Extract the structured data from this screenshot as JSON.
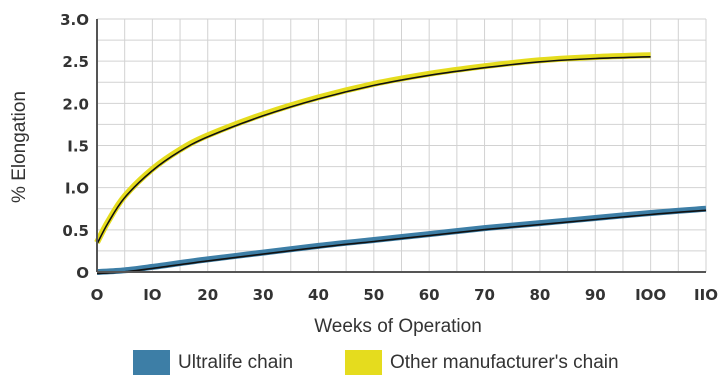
{
  "chart_data": {
    "type": "line",
    "xlabel": "Weeks of Operation",
    "ylabel": "% Elongation",
    "x_ticks": [
      "O",
      "IO",
      "20",
      "30",
      "40",
      "50",
      "60",
      "70",
      "80",
      "90",
      "IOO",
      "IIO"
    ],
    "y_ticks": [
      "O",
      "0.5",
      "I.O",
      "I.5",
      "2.0",
      "2.5",
      "3.O"
    ],
    "xlim": [
      0,
      110
    ],
    "ylim": [
      0,
      3.0
    ],
    "grid": true,
    "legend_position": "bottom",
    "series": [
      {
        "name": "Ultralife chain",
        "color": "#3d7ea6",
        "x": [
          0,
          5,
          10,
          20,
          30,
          40,
          50,
          60,
          70,
          80,
          90,
          100,
          110
        ],
        "y": [
          0,
          0.02,
          0.06,
          0.15,
          0.23,
          0.31,
          0.38,
          0.45,
          0.52,
          0.58,
          0.64,
          0.7,
          0.75
        ]
      },
      {
        "name": "Other manufacturer's chain",
        "color": "#e5dc1e",
        "x": [
          0,
          2,
          5,
          10,
          15,
          20,
          30,
          40,
          50,
          60,
          70,
          80,
          90,
          100
        ],
        "y": [
          0.35,
          0.6,
          0.9,
          1.22,
          1.45,
          1.62,
          1.87,
          2.07,
          2.23,
          2.35,
          2.44,
          2.51,
          2.55,
          2.57
        ]
      }
    ]
  }
}
